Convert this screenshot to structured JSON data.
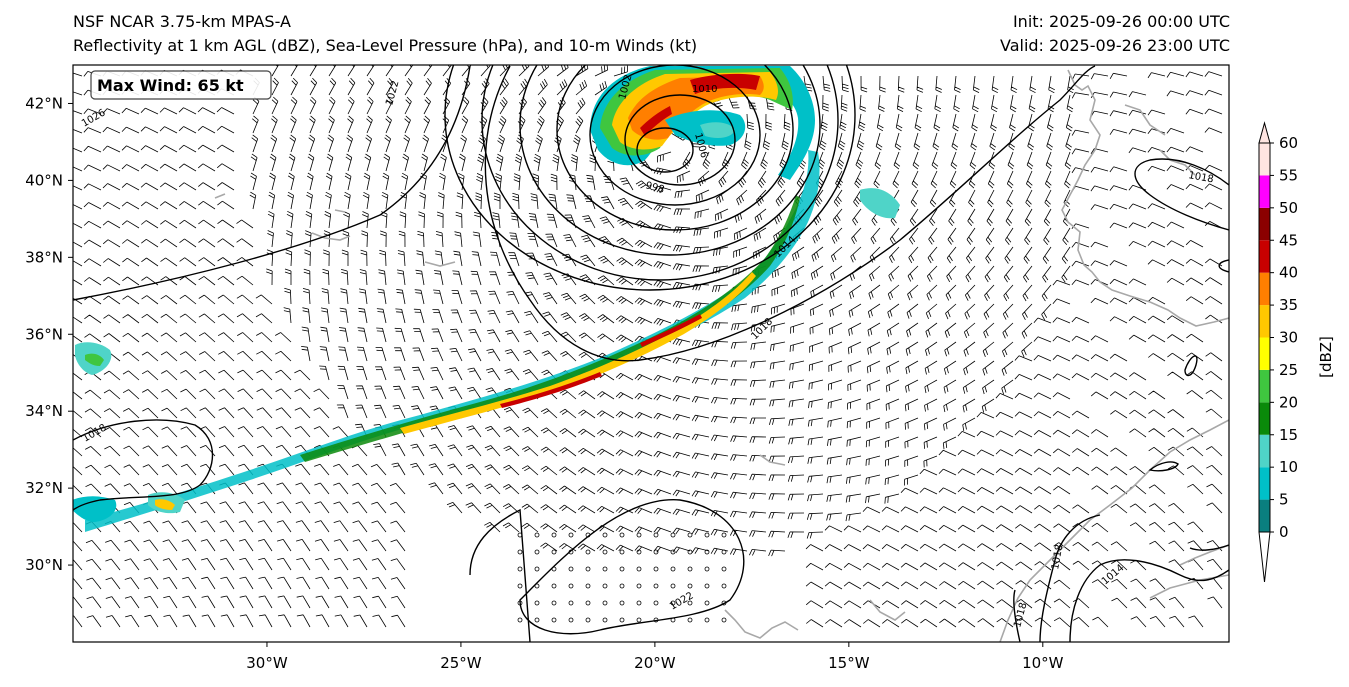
{
  "header": {
    "model": "NSF NCAR 3.75-km MPAS-A",
    "fields": "Reflectivity at 1 km AGL (dBZ), Sea-Level Pressure (hPa), and 10-m Winds (kt)",
    "init": "Init: 2025-09-26 00:00 UTC",
    "valid": "Valid: 2025-09-26 23:00 UTC"
  },
  "annotation": {
    "max_wind": "Max Wind: 65 kt"
  },
  "axes": {
    "lat_labels": [
      "42°N",
      "40°N",
      "38°N",
      "36°N",
      "34°N",
      "32°N",
      "30°N"
    ],
    "lat_values": [
      42,
      40,
      38,
      36,
      34,
      32,
      30
    ],
    "lon_labels": [
      "30°W",
      "25°W",
      "20°W",
      "15°W",
      "10°W"
    ],
    "lon_values": [
      -30,
      -25,
      -20,
      -15,
      -10
    ],
    "lon_range": [
      -35,
      -5.2
    ],
    "lat_range": [
      28,
      43
    ]
  },
  "colorbar": {
    "label": "[dBZ]",
    "tick_labels": [
      "0",
      "5",
      "10",
      "15",
      "20",
      "25",
      "30",
      "35",
      "40",
      "45",
      "50",
      "55",
      "60"
    ],
    "bins": [
      {
        "from": 0,
        "to": 5,
        "color": "#0a7f7f"
      },
      {
        "from": 5,
        "to": 10,
        "color": "#00c0c8"
      },
      {
        "from": 10,
        "to": 15,
        "color": "#4fd4c8"
      },
      {
        "from": 15,
        "to": 20,
        "color": "#0a8a0a"
      },
      {
        "from": 20,
        "to": 25,
        "color": "#3fc63f"
      },
      {
        "from": 25,
        "to": 30,
        "color": "#ffff00"
      },
      {
        "from": 30,
        "to": 35,
        "color": "#ffc800"
      },
      {
        "from": 35,
        "to": 40,
        "color": "#ff7f00"
      },
      {
        "from": 40,
        "to": 45,
        "color": "#c80000"
      },
      {
        "from": 45,
        "to": 50,
        "color": "#8b0000"
      },
      {
        "from": 50,
        "to": 55,
        "color": "#ff00ff"
      },
      {
        "from": 55,
        "to": 60,
        "color": "#ffe4e1"
      }
    ]
  },
  "isobars": {
    "labels": [
      "1026",
      "1022",
      "1018",
      "1010",
      "1006",
      "1002",
      "998",
      "1014",
      "1018",
      "1018",
      "1022",
      "1018",
      "1014",
      "1018",
      "1018"
    ]
  }
}
